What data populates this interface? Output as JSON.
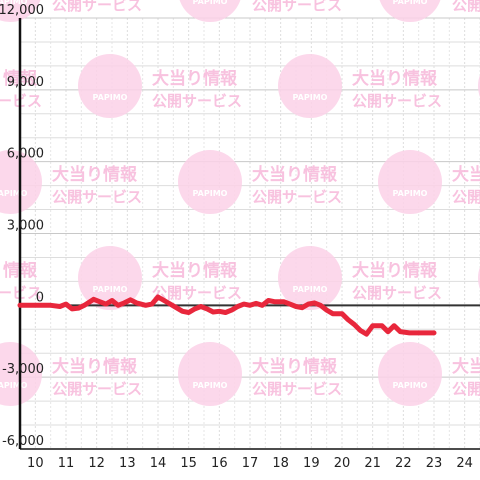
{
  "watermark": {
    "line1": "大当り情報",
    "line2": "公開サービス",
    "logo_text": "PAPIMO",
    "color": "#fbd1e8"
  },
  "chart_data": {
    "type": "line",
    "title": "",
    "xlabel": "",
    "ylabel": "",
    "xlim": [
      9.5,
      24.5
    ],
    "ylim": [
      -6000,
      12000
    ],
    "x_ticks": [
      10,
      11,
      12,
      13,
      14,
      15,
      16,
      17,
      18,
      19,
      20,
      21,
      22,
      23,
      24
    ],
    "x_tick_labels": [
      "10",
      "11",
      "12",
      "13",
      "14",
      "15",
      "16",
      "17",
      "18",
      "19",
      "20",
      "21",
      "22",
      "23",
      "24"
    ],
    "y_ticks": [
      -6000,
      -3000,
      0,
      3000,
      6000,
      9000,
      12000
    ],
    "y_tick_labels": [
      "-6,000",
      "-3,000",
      "0",
      "3,000",
      "6,000",
      "9,000",
      "12,000"
    ],
    "grid": true,
    "colors": {
      "line": "#e8273c",
      "zero_line": "#333333",
      "axis": "#111111",
      "grid_major": "#c8c8c8",
      "grid_minor": "#dddddd"
    },
    "series": [
      {
        "values": [
          [
            9.5,
            0
          ],
          [
            10.5,
            0
          ],
          [
            10.8,
            -50
          ],
          [
            11.0,
            50
          ],
          [
            11.2,
            -150
          ],
          [
            11.4,
            -120
          ],
          [
            11.6,
            0
          ],
          [
            11.9,
            250
          ],
          [
            12.1,
            150
          ],
          [
            12.3,
            50
          ],
          [
            12.5,
            200
          ],
          [
            12.7,
            0
          ],
          [
            12.9,
            100
          ],
          [
            13.1,
            230
          ],
          [
            13.3,
            100
          ],
          [
            13.6,
            0
          ],
          [
            13.8,
            50
          ],
          [
            14.0,
            350
          ],
          [
            14.2,
            200
          ],
          [
            14.4,
            50
          ],
          [
            14.6,
            -100
          ],
          [
            14.8,
            -250
          ],
          [
            15.0,
            -300
          ],
          [
            15.2,
            -150
          ],
          [
            15.4,
            -50
          ],
          [
            15.6,
            -150
          ],
          [
            15.8,
            -280
          ],
          [
            16.0,
            -250
          ],
          [
            16.2,
            -300
          ],
          [
            16.4,
            -200
          ],
          [
            16.6,
            -50
          ],
          [
            16.8,
            50
          ],
          [
            17.0,
            0
          ],
          [
            17.2,
            80
          ],
          [
            17.4,
            0
          ],
          [
            17.6,
            200
          ],
          [
            17.8,
            150
          ],
          [
            18.1,
            150
          ],
          [
            18.3,
            50
          ],
          [
            18.5,
            -50
          ],
          [
            18.7,
            -100
          ],
          [
            18.9,
            50
          ],
          [
            19.1,
            100
          ],
          [
            19.3,
            0
          ],
          [
            19.5,
            -200
          ],
          [
            19.7,
            -350
          ],
          [
            20.0,
            -350
          ],
          [
            20.2,
            -600
          ],
          [
            20.4,
            -800
          ],
          [
            20.6,
            -1050
          ],
          [
            20.8,
            -1200
          ],
          [
            21.0,
            -850
          ],
          [
            21.3,
            -850
          ],
          [
            21.5,
            -1100
          ],
          [
            21.7,
            -850
          ],
          [
            21.9,
            -1100
          ],
          [
            22.2,
            -1150
          ],
          [
            23.0,
            -1150
          ]
        ]
      }
    ]
  }
}
